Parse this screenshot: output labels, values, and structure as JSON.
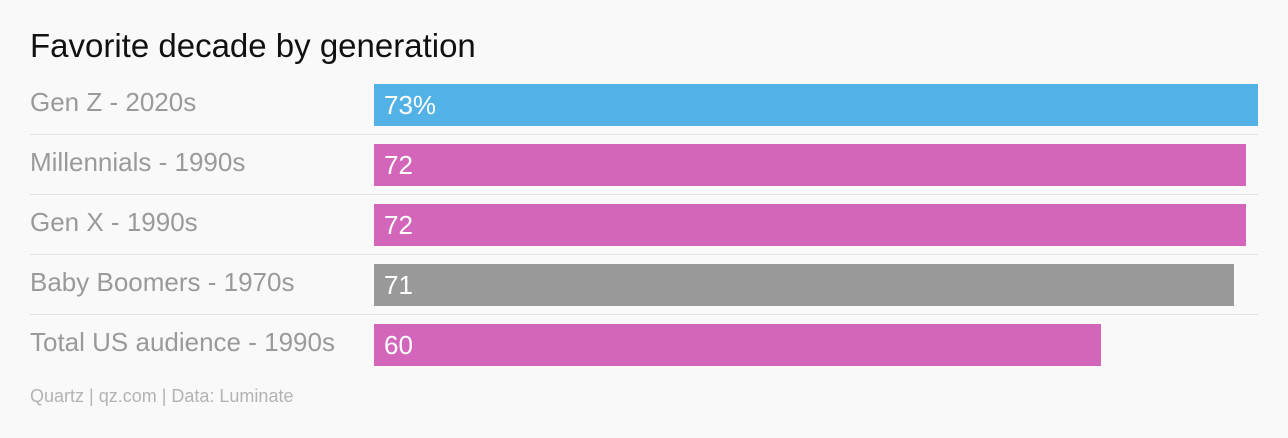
{
  "chart_data": {
    "type": "bar",
    "orientation": "horizontal",
    "title": "Favorite decade by generation",
    "categories": [
      "Gen Z - 2020s",
      "Millennials - 1990s",
      "Gen X - 1990s",
      "Baby Boomers - 1970s",
      "Total US audience - 1990s"
    ],
    "values": [
      73,
      72,
      72,
      71,
      60
    ],
    "value_labels": [
      "73%",
      "72",
      "72",
      "71",
      "60"
    ],
    "bar_colors": [
      "#52b2e5",
      "#d366bb",
      "#d366bb",
      "#999999",
      "#d366bb"
    ],
    "xlim": [
      0,
      73
    ],
    "grid": false,
    "legend": "none"
  },
  "source": "Quartz | qz.com | Data: Luminate",
  "colors": {
    "background": "#f9f9f9",
    "title": "#111111",
    "category_label": "#9a9a9a",
    "divider": "#e2e2e2",
    "source": "#b3b3b3"
  }
}
